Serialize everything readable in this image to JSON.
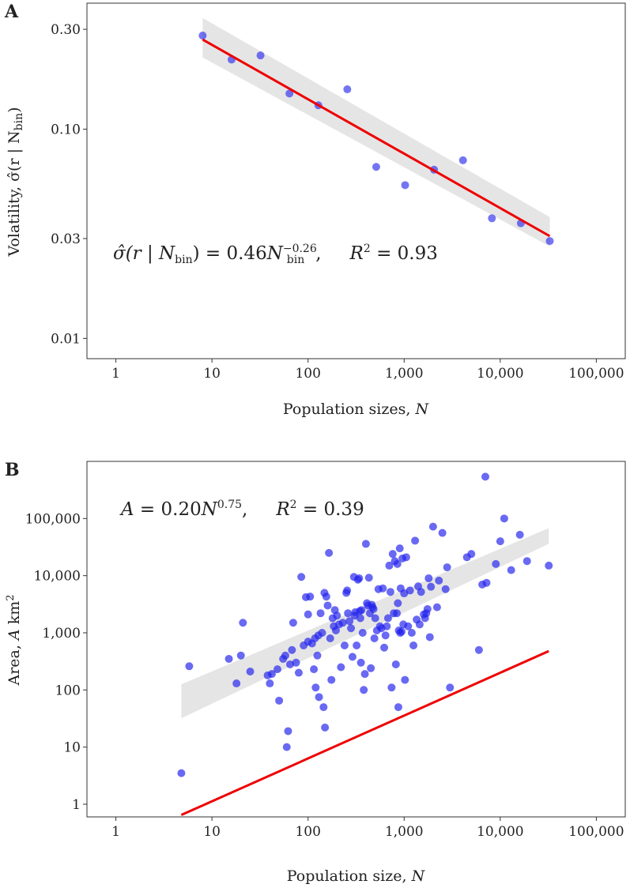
{
  "chart_data": [
    {
      "panel_label": "A",
      "type": "scatter",
      "x_scale": "log10",
      "y_scale": "log10",
      "xlim": [
        0.5,
        200000
      ],
      "ylim": [
        0.008,
        0.4
      ],
      "x_ticks": [
        1,
        10,
        100,
        1000,
        10000,
        100000
      ],
      "x_tick_labels": [
        "1",
        "10",
        "100",
        "1,000",
        "10,000",
        "100,000"
      ],
      "y_ticks": [
        0.01,
        0.03,
        0.1,
        0.3
      ],
      "y_tick_labels": [
        "0.01",
        "0.03",
        "0.10",
        "0.30"
      ],
      "xlabel": "Population sizes, ",
      "xlabel_var": "N",
      "ylabel": "Volatility, σ̂(r | N",
      "ylabel_sub": "bin",
      "ylabel_end": ")",
      "annotation": "σ̂(r | N_bin) = 0.46 N_bin^−0.26,  R² = 0.93",
      "annotation_parts": {
        "lhs": "σ̂(r | ",
        "N": "N",
        "bin": "bin",
        "close": ") = 0.46",
        "exp": "−0.26",
        "tail": ",",
        "r2": "R",
        "two": "2",
        "r2_value": " = 0.93"
      },
      "fit": {
        "coefficient": 0.46,
        "exponent": -0.26,
        "r_squared": 0.93,
        "x_range": [
          8,
          32768
        ]
      },
      "band": {
        "lower": [
          0.22,
          0.0275
        ],
        "upper": [
          0.34,
          0.038
        ],
        "x": [
          8,
          32768
        ]
      },
      "colors": {
        "points": "#3333ee",
        "fit": "#ee0000",
        "band": "#e5e5e5"
      },
      "points": [
        {
          "x": 8,
          "y": 0.28
        },
        {
          "x": 16,
          "y": 0.215
        },
        {
          "x": 32,
          "y": 0.225
        },
        {
          "x": 64,
          "y": 0.148
        },
        {
          "x": 128,
          "y": 0.13
        },
        {
          "x": 256,
          "y": 0.155
        },
        {
          "x": 512,
          "y": 0.066
        },
        {
          "x": 1024,
          "y": 0.054
        },
        {
          "x": 2048,
          "y": 0.064
        },
        {
          "x": 4096,
          "y": 0.071
        },
        {
          "x": 8192,
          "y": 0.0375
        },
        {
          "x": 16384,
          "y": 0.0355
        },
        {
          "x": 32768,
          "y": 0.0292
        }
      ]
    },
    {
      "panel_label": "B",
      "type": "scatter",
      "x_scale": "log10",
      "y_scale": "log10",
      "xlim": [
        0.5,
        200000
      ],
      "ylim": [
        0.6,
        1000000
      ],
      "x_ticks": [
        1,
        10,
        100,
        1000,
        10000,
        100000
      ],
      "x_tick_labels": [
        "1",
        "10",
        "100",
        "1,000",
        "10,000",
        "100,000"
      ],
      "y_ticks": [
        1,
        10,
        100,
        1000,
        10000,
        100000
      ],
      "y_tick_labels": [
        "1",
        "10",
        "100",
        "1,000",
        "10,000",
        "100,000"
      ],
      "xlabel": "Population size, ",
      "xlabel_var": "N",
      "ylabel": "Area, ",
      "ylabel_var": "A",
      "ylabel_unit": " km",
      "ylabel_exp": "2",
      "annotation": "A = 0.20 N^0.75,  R² = 0.39",
      "annotation_parts": {
        "A": "A",
        "eq": " = 0.20",
        "N": "N",
        "exp": "0.75",
        "tail": ",",
        "r2": "R",
        "two": "2",
        "r2_value": " = 0.39"
      },
      "fit": {
        "coefficient": 0.2,
        "exponent": 0.75,
        "r_squared": 0.39,
        "x_range": [
          4.8,
          32000
        ]
      },
      "band": {
        "lower": [
          32,
          36000
        ],
        "upper": [
          125,
          68000
        ],
        "x": [
          4.8,
          32000
        ]
      },
      "colors": {
        "points": "#2222ee",
        "fit": "#ee0000",
        "band": "#e5e5e5"
      },
      "points": [
        {
          "x": 4.8,
          "y": 3.5
        },
        {
          "x": 5.8,
          "y": 260
        },
        {
          "x": 15,
          "y": 350
        },
        {
          "x": 18,
          "y": 130
        },
        {
          "x": 20,
          "y": 400
        },
        {
          "x": 21,
          "y": 1500
        },
        {
          "x": 25,
          "y": 210
        },
        {
          "x": 38,
          "y": 180
        },
        {
          "x": 40,
          "y": 130
        },
        {
          "x": 42,
          "y": 190
        },
        {
          "x": 48,
          "y": 230
        },
        {
          "x": 50,
          "y": 65
        },
        {
          "x": 55,
          "y": 350
        },
        {
          "x": 58,
          "y": 400
        },
        {
          "x": 60,
          "y": 10
        },
        {
          "x": 62,
          "y": 19
        },
        {
          "x": 65,
          "y": 280
        },
        {
          "x": 68,
          "y": 500
        },
        {
          "x": 70,
          "y": 1500
        },
        {
          "x": 75,
          "y": 300
        },
        {
          "x": 80,
          "y": 200
        },
        {
          "x": 85,
          "y": 9500
        },
        {
          "x": 90,
          "y": 600
        },
        {
          "x": 95,
          "y": 4200
        },
        {
          "x": 100,
          "y": 2100
        },
        {
          "x": 100,
          "y": 700
        },
        {
          "x": 105,
          "y": 4300
        },
        {
          "x": 110,
          "y": 650
        },
        {
          "x": 115,
          "y": 230
        },
        {
          "x": 118,
          "y": 800
        },
        {
          "x": 120,
          "y": 110
        },
        {
          "x": 125,
          "y": 400
        },
        {
          "x": 128,
          "y": 900
        },
        {
          "x": 130,
          "y": 75
        },
        {
          "x": 135,
          "y": 2200
        },
        {
          "x": 140,
          "y": 1000
        },
        {
          "x": 145,
          "y": 50
        },
        {
          "x": 148,
          "y": 5000
        },
        {
          "x": 150,
          "y": 22
        },
        {
          "x": 155,
          "y": 4300
        },
        {
          "x": 160,
          "y": 3000
        },
        {
          "x": 165,
          "y": 25000
        },
        {
          "x": 170,
          "y": 800
        },
        {
          "x": 175,
          "y": 150
        },
        {
          "x": 180,
          "y": 1800
        },
        {
          "x": 185,
          "y": 1300
        },
        {
          "x": 190,
          "y": 2500
        },
        {
          "x": 195,
          "y": 1100
        },
        {
          "x": 200,
          "y": 2000
        },
        {
          "x": 210,
          "y": 1400
        },
        {
          "x": 220,
          "y": 250
        },
        {
          "x": 230,
          "y": 1500
        },
        {
          "x": 240,
          "y": 600
        },
        {
          "x": 250,
          "y": 5000
        },
        {
          "x": 255,
          "y": 5500
        },
        {
          "x": 260,
          "y": 2200
        },
        {
          "x": 270,
          "y": 1600
        },
        {
          "x": 280,
          "y": 1200
        },
        {
          "x": 290,
          "y": 380
        },
        {
          "x": 300,
          "y": 9500
        },
        {
          "x": 305,
          "y": 2000
        },
        {
          "x": 310,
          "y": 2300
        },
        {
          "x": 320,
          "y": 600
        },
        {
          "x": 330,
          "y": 8500
        },
        {
          "x": 340,
          "y": 9000
        },
        {
          "x": 345,
          "y": 2400
        },
        {
          "x": 350,
          "y": 1800
        },
        {
          "x": 355,
          "y": 300
        },
        {
          "x": 360,
          "y": 2500
        },
        {
          "x": 370,
          "y": 1000
        },
        {
          "x": 380,
          "y": 100
        },
        {
          "x": 390,
          "y": 190
        },
        {
          "x": 400,
          "y": 36000
        },
        {
          "x": 410,
          "y": 3300
        },
        {
          "x": 420,
          "y": 3000
        },
        {
          "x": 430,
          "y": 9200
        },
        {
          "x": 440,
          "y": 2200
        },
        {
          "x": 450,
          "y": 240
        },
        {
          "x": 460,
          "y": 3100
        },
        {
          "x": 470,
          "y": 2800
        },
        {
          "x": 480,
          "y": 2600
        },
        {
          "x": 490,
          "y": 800
        },
        {
          "x": 500,
          "y": 1800
        },
        {
          "x": 520,
          "y": 1100
        },
        {
          "x": 540,
          "y": 5800
        },
        {
          "x": 560,
          "y": 1300
        },
        {
          "x": 580,
          "y": 1200
        },
        {
          "x": 600,
          "y": 6000
        },
        {
          "x": 620,
          "y": 550
        },
        {
          "x": 640,
          "y": 900
        },
        {
          "x": 660,
          "y": 1300
        },
        {
          "x": 680,
          "y": 1800
        },
        {
          "x": 700,
          "y": 15000
        },
        {
          "x": 720,
          "y": 5200
        },
        {
          "x": 740,
          "y": 110
        },
        {
          "x": 760,
          "y": 24000
        },
        {
          "x": 780,
          "y": 2200
        },
        {
          "x": 800,
          "y": 18000
        },
        {
          "x": 820,
          "y": 280
        },
        {
          "x": 840,
          "y": 2200
        },
        {
          "x": 850,
          "y": 16000
        },
        {
          "x": 860,
          "y": 3300
        },
        {
          "x": 870,
          "y": 50
        },
        {
          "x": 880,
          "y": 1100
        },
        {
          "x": 900,
          "y": 30000
        },
        {
          "x": 910,
          "y": 1000
        },
        {
          "x": 920,
          "y": 6000
        },
        {
          "x": 940,
          "y": 1050
        },
        {
          "x": 960,
          "y": 20000
        },
        {
          "x": 980,
          "y": 1400
        },
        {
          "x": 1000,
          "y": 4900
        },
        {
          "x": 1020,
          "y": 150
        },
        {
          "x": 1050,
          "y": 21000
        },
        {
          "x": 1100,
          "y": 1300
        },
        {
          "x": 1150,
          "y": 5500
        },
        {
          "x": 1200,
          "y": 1000
        },
        {
          "x": 1250,
          "y": 600
        },
        {
          "x": 1300,
          "y": 41000
        },
        {
          "x": 1350,
          "y": 1700
        },
        {
          "x": 1400,
          "y": 6500
        },
        {
          "x": 1450,
          "y": 1400
        },
        {
          "x": 1500,
          "y": 5200
        },
        {
          "x": 1600,
          "y": 2100
        },
        {
          "x": 1650,
          "y": 1800
        },
        {
          "x": 1700,
          "y": 2200
        },
        {
          "x": 1750,
          "y": 2600
        },
        {
          "x": 1800,
          "y": 9000
        },
        {
          "x": 1850,
          "y": 840
        },
        {
          "x": 1900,
          "y": 6400
        },
        {
          "x": 2000,
          "y": 72000
        },
        {
          "x": 2200,
          "y": 2800
        },
        {
          "x": 2300,
          "y": 8200
        },
        {
          "x": 2500,
          "y": 56000
        },
        {
          "x": 2700,
          "y": 5800
        },
        {
          "x": 2800,
          "y": 14000
        },
        {
          "x": 3000,
          "y": 110
        },
        {
          "x": 4500,
          "y": 21000
        },
        {
          "x": 5000,
          "y": 24000
        },
        {
          "x": 6000,
          "y": 500
        },
        {
          "x": 6500,
          "y": 7000
        },
        {
          "x": 7000,
          "y": 540000
        },
        {
          "x": 7200,
          "y": 7500
        },
        {
          "x": 9000,
          "y": 16000
        },
        {
          "x": 10000,
          "y": 40000
        },
        {
          "x": 11000,
          "y": 100000
        },
        {
          "x": 13000,
          "y": 12500
        },
        {
          "x": 16000,
          "y": 52000
        },
        {
          "x": 19000,
          "y": 18000
        },
        {
          "x": 32000,
          "y": 15000
        }
      ]
    }
  ]
}
